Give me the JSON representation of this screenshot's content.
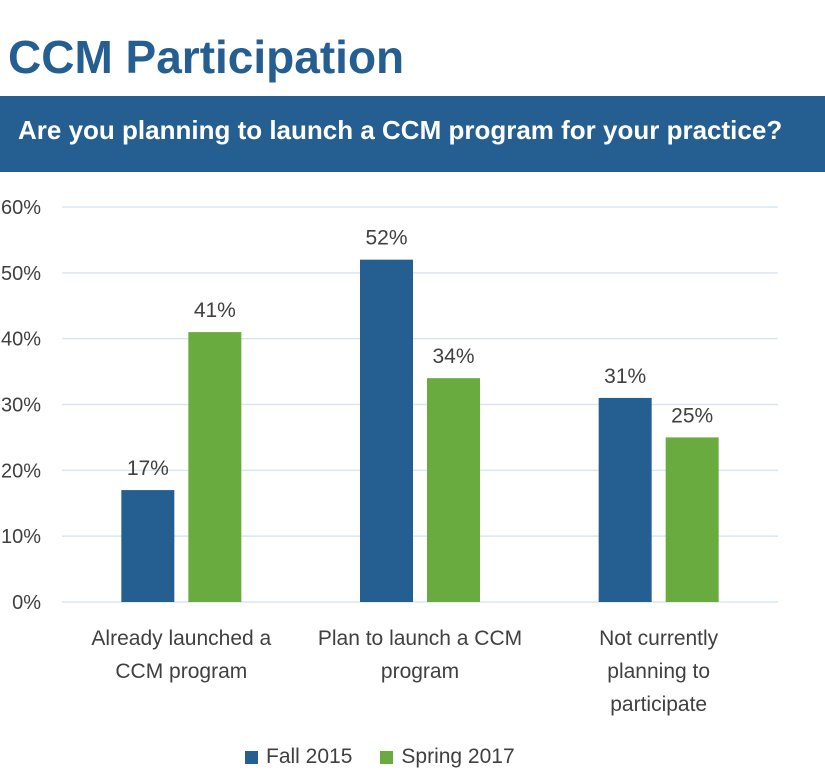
{
  "page": {
    "title": "CCM Participation",
    "question": "Are you planning to launch a CCM program for your practice?"
  },
  "colors": {
    "brand": "#255e91",
    "fall": "#255e91",
    "spring": "#6aab3f",
    "grid": "#d9e6f2"
  },
  "chart_data": {
    "type": "bar",
    "title": "",
    "xlabel": "",
    "ylabel": "",
    "ylim": [
      0,
      60
    ],
    "yticks": [
      "0%",
      "10%",
      "20%",
      "30%",
      "40%",
      "50%",
      "60%"
    ],
    "grid": true,
    "legend_position": "bottom",
    "categories": [
      [
        "Already launched a",
        "CCM program"
      ],
      [
        "Plan to launch a CCM",
        "program"
      ],
      [
        "Not currently",
        "planning to",
        "participate"
      ]
    ],
    "series": [
      {
        "name": "Fall 2015",
        "values": [
          17,
          52,
          31
        ],
        "labels": [
          "17%",
          "52%",
          "31%"
        ]
      },
      {
        "name": "Spring 2017",
        "values": [
          41,
          34,
          25
        ],
        "labels": [
          "41%",
          "34%",
          "25%"
        ]
      }
    ]
  }
}
